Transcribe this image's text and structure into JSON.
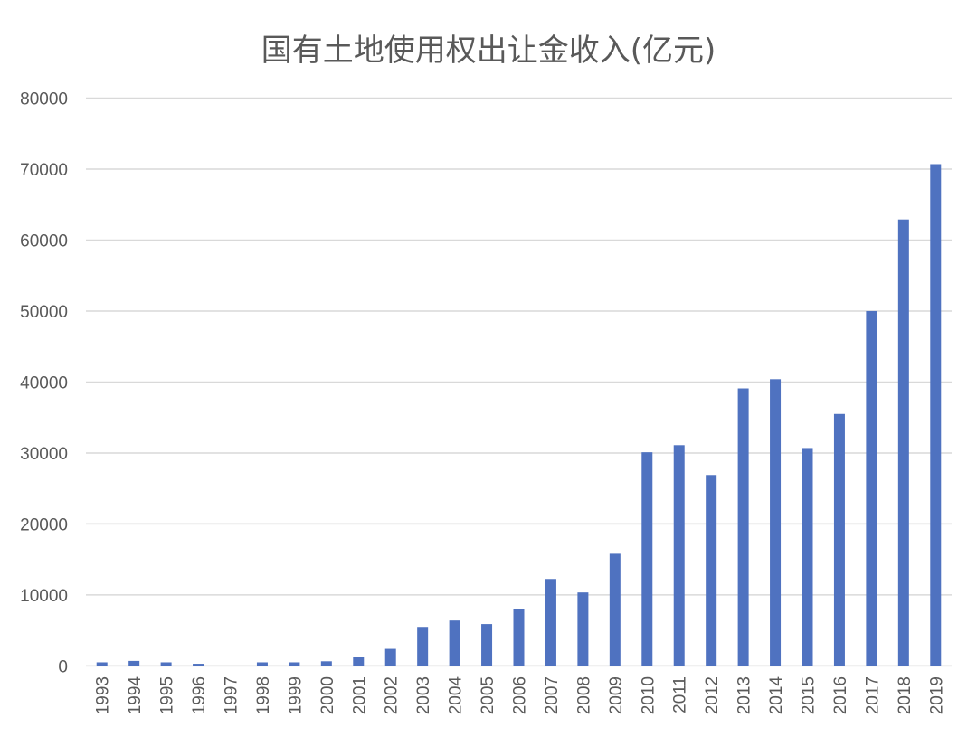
{
  "chart_data": {
    "type": "bar",
    "title": "国有土地使用权出让金收入(亿元)",
    "xlabel": "",
    "ylabel": "",
    "ylim": [
      0,
      80000
    ],
    "yticks": [
      0,
      10000,
      20000,
      30000,
      40000,
      50000,
      60000,
      70000,
      80000
    ],
    "grid": true,
    "legend": "none",
    "bar_color": "#4f72c0",
    "categories": [
      "1993",
      "1994",
      "1995",
      "1996",
      "1997",
      "1998",
      "1999",
      "2000",
      "2001",
      "2002",
      "2003",
      "2004",
      "2005",
      "2006",
      "2007",
      "2008",
      "2009",
      "2010",
      "2011",
      "2012",
      "2013",
      "2014",
      "2015",
      "2016",
      "2017",
      "2018",
      "2019"
    ],
    "values": [
      500,
      700,
      500,
      300,
      0,
      500,
      500,
      650,
      1300,
      2400,
      5500,
      6400,
      5900,
      8050,
      12250,
      10350,
      15800,
      30100,
      31100,
      26900,
      39100,
      40400,
      30700,
      35500,
      50000,
      62900,
      70700
    ]
  }
}
